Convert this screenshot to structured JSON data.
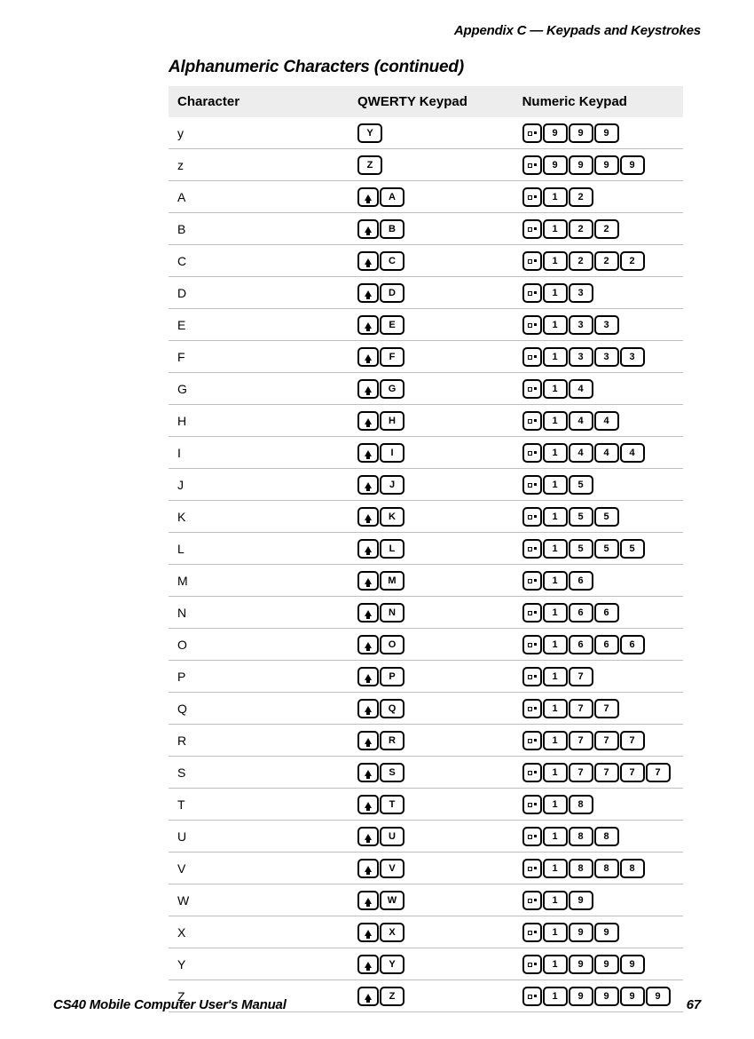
{
  "header": "Appendix C — Keypads and Keystrokes",
  "sectionTitle": "Alphanumeric Characters (continued)",
  "footerLeft": "CS40 Mobile Computer User's Manual",
  "footerRight": "67",
  "columns": [
    "Character",
    "QWERTY Keypad",
    "Numeric Keypad"
  ],
  "rows": [
    {
      "char": "y",
      "qwerty": [
        {
          "t": "key",
          "v": "Y"
        }
      ],
      "numeric": [
        {
          "t": "mode"
        },
        {
          "t": "key",
          "v": "9"
        },
        {
          "t": "key",
          "v": "9"
        },
        {
          "t": "key",
          "v": "9"
        }
      ]
    },
    {
      "char": "z",
      "qwerty": [
        {
          "t": "key",
          "v": "Z"
        }
      ],
      "numeric": [
        {
          "t": "mode"
        },
        {
          "t": "key",
          "v": "9"
        },
        {
          "t": "key",
          "v": "9"
        },
        {
          "t": "key",
          "v": "9"
        },
        {
          "t": "key",
          "v": "9"
        }
      ]
    },
    {
      "char": "A",
      "qwerty": [
        {
          "t": "shift"
        },
        {
          "t": "key",
          "v": "A"
        }
      ],
      "numeric": [
        {
          "t": "mode"
        },
        {
          "t": "key",
          "v": "1"
        },
        {
          "t": "key",
          "v": "2"
        }
      ]
    },
    {
      "char": "B",
      "qwerty": [
        {
          "t": "shift"
        },
        {
          "t": "key",
          "v": "B"
        }
      ],
      "numeric": [
        {
          "t": "mode"
        },
        {
          "t": "key",
          "v": "1"
        },
        {
          "t": "key",
          "v": "2"
        },
        {
          "t": "key",
          "v": "2"
        }
      ]
    },
    {
      "char": "C",
      "qwerty": [
        {
          "t": "shift"
        },
        {
          "t": "key",
          "v": "C"
        }
      ],
      "numeric": [
        {
          "t": "mode"
        },
        {
          "t": "key",
          "v": "1"
        },
        {
          "t": "key",
          "v": "2"
        },
        {
          "t": "key",
          "v": "2"
        },
        {
          "t": "key",
          "v": "2"
        }
      ]
    },
    {
      "char": "D",
      "qwerty": [
        {
          "t": "shift"
        },
        {
          "t": "key",
          "v": "D"
        }
      ],
      "numeric": [
        {
          "t": "mode"
        },
        {
          "t": "key",
          "v": "1"
        },
        {
          "t": "key",
          "v": "3"
        }
      ]
    },
    {
      "char": "E",
      "qwerty": [
        {
          "t": "shift"
        },
        {
          "t": "key",
          "v": "E"
        }
      ],
      "numeric": [
        {
          "t": "mode"
        },
        {
          "t": "key",
          "v": "1"
        },
        {
          "t": "key",
          "v": "3"
        },
        {
          "t": "key",
          "v": "3"
        }
      ]
    },
    {
      "char": "F",
      "qwerty": [
        {
          "t": "shift"
        },
        {
          "t": "key",
          "v": "F"
        }
      ],
      "numeric": [
        {
          "t": "mode"
        },
        {
          "t": "key",
          "v": "1"
        },
        {
          "t": "key",
          "v": "3"
        },
        {
          "t": "key",
          "v": "3"
        },
        {
          "t": "key",
          "v": "3"
        }
      ]
    },
    {
      "char": "G",
      "qwerty": [
        {
          "t": "shift"
        },
        {
          "t": "key",
          "v": "G"
        }
      ],
      "numeric": [
        {
          "t": "mode"
        },
        {
          "t": "key",
          "v": "1"
        },
        {
          "t": "key",
          "v": "4"
        }
      ]
    },
    {
      "char": "H",
      "qwerty": [
        {
          "t": "shift"
        },
        {
          "t": "key",
          "v": "H"
        }
      ],
      "numeric": [
        {
          "t": "mode"
        },
        {
          "t": "key",
          "v": "1"
        },
        {
          "t": "key",
          "v": "4"
        },
        {
          "t": "key",
          "v": "4"
        }
      ]
    },
    {
      "char": "I",
      "qwerty": [
        {
          "t": "shift"
        },
        {
          "t": "key",
          "v": "I"
        }
      ],
      "numeric": [
        {
          "t": "mode"
        },
        {
          "t": "key",
          "v": "1"
        },
        {
          "t": "key",
          "v": "4"
        },
        {
          "t": "key",
          "v": "4"
        },
        {
          "t": "key",
          "v": "4"
        }
      ]
    },
    {
      "char": "J",
      "qwerty": [
        {
          "t": "shift"
        },
        {
          "t": "key",
          "v": "J"
        }
      ],
      "numeric": [
        {
          "t": "mode"
        },
        {
          "t": "key",
          "v": "1"
        },
        {
          "t": "key",
          "v": "5"
        }
      ]
    },
    {
      "char": "K",
      "qwerty": [
        {
          "t": "shift"
        },
        {
          "t": "key",
          "v": "K"
        }
      ],
      "numeric": [
        {
          "t": "mode"
        },
        {
          "t": "key",
          "v": "1"
        },
        {
          "t": "key",
          "v": "5"
        },
        {
          "t": "key",
          "v": "5"
        }
      ]
    },
    {
      "char": "L",
      "qwerty": [
        {
          "t": "shift"
        },
        {
          "t": "key",
          "v": "L"
        }
      ],
      "numeric": [
        {
          "t": "mode"
        },
        {
          "t": "key",
          "v": "1"
        },
        {
          "t": "key",
          "v": "5"
        },
        {
          "t": "key",
          "v": "5"
        },
        {
          "t": "key",
          "v": "5"
        }
      ]
    },
    {
      "char": "M",
      "qwerty": [
        {
          "t": "shift"
        },
        {
          "t": "key",
          "v": "M"
        }
      ],
      "numeric": [
        {
          "t": "mode"
        },
        {
          "t": "key",
          "v": "1"
        },
        {
          "t": "key",
          "v": "6"
        }
      ]
    },
    {
      "char": "N",
      "qwerty": [
        {
          "t": "shift"
        },
        {
          "t": "key",
          "v": "N"
        }
      ],
      "numeric": [
        {
          "t": "mode"
        },
        {
          "t": "key",
          "v": "1"
        },
        {
          "t": "key",
          "v": "6"
        },
        {
          "t": "key",
          "v": "6"
        }
      ]
    },
    {
      "char": "O",
      "qwerty": [
        {
          "t": "shift"
        },
        {
          "t": "key",
          "v": "O"
        }
      ],
      "numeric": [
        {
          "t": "mode"
        },
        {
          "t": "key",
          "v": "1"
        },
        {
          "t": "key",
          "v": "6"
        },
        {
          "t": "key",
          "v": "6"
        },
        {
          "t": "key",
          "v": "6"
        }
      ]
    },
    {
      "char": "P",
      "qwerty": [
        {
          "t": "shift"
        },
        {
          "t": "key",
          "v": "P"
        }
      ],
      "numeric": [
        {
          "t": "mode"
        },
        {
          "t": "key",
          "v": "1"
        },
        {
          "t": "key",
          "v": "7"
        }
      ]
    },
    {
      "char": "Q",
      "qwerty": [
        {
          "t": "shift"
        },
        {
          "t": "key",
          "v": "Q"
        }
      ],
      "numeric": [
        {
          "t": "mode"
        },
        {
          "t": "key",
          "v": "1"
        },
        {
          "t": "key",
          "v": "7"
        },
        {
          "t": "key",
          "v": "7"
        }
      ]
    },
    {
      "char": "R",
      "qwerty": [
        {
          "t": "shift"
        },
        {
          "t": "key",
          "v": "R"
        }
      ],
      "numeric": [
        {
          "t": "mode"
        },
        {
          "t": "key",
          "v": "1"
        },
        {
          "t": "key",
          "v": "7"
        },
        {
          "t": "key",
          "v": "7"
        },
        {
          "t": "key",
          "v": "7"
        }
      ]
    },
    {
      "char": "S",
      "qwerty": [
        {
          "t": "shift"
        },
        {
          "t": "key",
          "v": "S"
        }
      ],
      "numeric": [
        {
          "t": "mode"
        },
        {
          "t": "key",
          "v": "1"
        },
        {
          "t": "key",
          "v": "7"
        },
        {
          "t": "key",
          "v": "7"
        },
        {
          "t": "key",
          "v": "7"
        },
        {
          "t": "key",
          "v": "7"
        }
      ]
    },
    {
      "char": "T",
      "qwerty": [
        {
          "t": "shift"
        },
        {
          "t": "key",
          "v": "T"
        }
      ],
      "numeric": [
        {
          "t": "mode"
        },
        {
          "t": "key",
          "v": "1"
        },
        {
          "t": "key",
          "v": "8"
        }
      ]
    },
    {
      "char": "U",
      "qwerty": [
        {
          "t": "shift"
        },
        {
          "t": "key",
          "v": "U"
        }
      ],
      "numeric": [
        {
          "t": "mode"
        },
        {
          "t": "key",
          "v": "1"
        },
        {
          "t": "key",
          "v": "8"
        },
        {
          "t": "key",
          "v": "8"
        }
      ]
    },
    {
      "char": "V",
      "qwerty": [
        {
          "t": "shift"
        },
        {
          "t": "key",
          "v": "V"
        }
      ],
      "numeric": [
        {
          "t": "mode"
        },
        {
          "t": "key",
          "v": "1"
        },
        {
          "t": "key",
          "v": "8"
        },
        {
          "t": "key",
          "v": "8"
        },
        {
          "t": "key",
          "v": "8"
        }
      ]
    },
    {
      "char": "W",
      "qwerty": [
        {
          "t": "shift"
        },
        {
          "t": "key",
          "v": "W"
        }
      ],
      "numeric": [
        {
          "t": "mode"
        },
        {
          "t": "key",
          "v": "1"
        },
        {
          "t": "key",
          "v": "9"
        }
      ]
    },
    {
      "char": "X",
      "qwerty": [
        {
          "t": "shift"
        },
        {
          "t": "key",
          "v": "X"
        }
      ],
      "numeric": [
        {
          "t": "mode"
        },
        {
          "t": "key",
          "v": "1"
        },
        {
          "t": "key",
          "v": "9"
        },
        {
          "t": "key",
          "v": "9"
        }
      ]
    },
    {
      "char": "Y",
      "qwerty": [
        {
          "t": "shift"
        },
        {
          "t": "key",
          "v": "Y"
        }
      ],
      "numeric": [
        {
          "t": "mode"
        },
        {
          "t": "key",
          "v": "1"
        },
        {
          "t": "key",
          "v": "9"
        },
        {
          "t": "key",
          "v": "9"
        },
        {
          "t": "key",
          "v": "9"
        }
      ]
    },
    {
      "char": "Z",
      "qwerty": [
        {
          "t": "shift"
        },
        {
          "t": "key",
          "v": "Z"
        }
      ],
      "numeric": [
        {
          "t": "mode"
        },
        {
          "t": "key",
          "v": "1"
        },
        {
          "t": "key",
          "v": "9"
        },
        {
          "t": "key",
          "v": "9"
        },
        {
          "t": "key",
          "v": "9"
        },
        {
          "t": "key",
          "v": "9"
        }
      ]
    }
  ]
}
